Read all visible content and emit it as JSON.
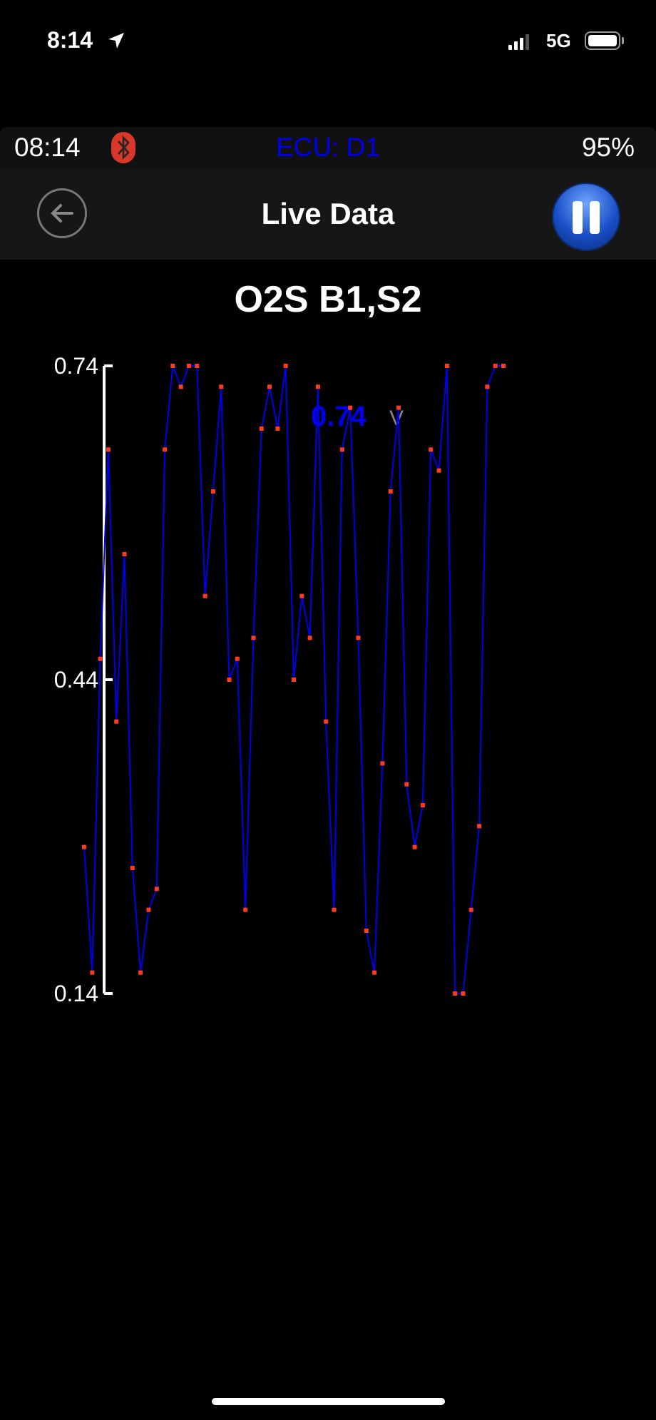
{
  "status_bar": {
    "time": "8:14",
    "network": "5G",
    "location_icon": "location-arrow-icon",
    "signal_icon": "cellular-signal-icon",
    "battery_icon": "battery-icon"
  },
  "info_bar": {
    "time": "08:14",
    "bluetooth_icon": "bluetooth-icon",
    "bluetooth_color": "#d8372a",
    "ecu": "ECU: D1",
    "ecu_color": "#0000ee",
    "battery": "95%"
  },
  "nav": {
    "title": "Live Data",
    "back_icon": "back-arrow-icon",
    "pause_icon": "pause-icon"
  },
  "pid": {
    "name": "O2S B1,S2",
    "value": "0.74",
    "unit": "V",
    "value_color": "#0000ee"
  },
  "chart_data": {
    "type": "line",
    "ylim": [
      0.14,
      0.74
    ],
    "yticks": [
      "0.74",
      "0.44",
      "0.14"
    ],
    "line_color": "#0000ee",
    "marker_color": "#ff3b1a",
    "values": [
      0.28,
      0.16,
      0.46,
      0.66,
      0.4,
      0.56,
      0.26,
      0.16,
      0.22,
      0.24,
      0.66,
      0.74,
      0.72,
      0.74,
      0.74,
      0.52,
      0.62,
      0.72,
      0.44,
      0.46,
      0.22,
      0.48,
      0.68,
      0.72,
      0.68,
      0.74,
      0.44,
      0.52,
      0.48,
      0.72,
      0.4,
      0.22,
      0.66,
      0.7,
      0.48,
      0.2,
      0.16,
      0.36,
      0.62,
      0.7,
      0.34,
      0.28,
      0.32,
      0.66,
      0.64,
      0.74,
      0.14,
      0.14,
      0.22,
      0.3,
      0.72,
      0.74,
      0.74
    ]
  }
}
